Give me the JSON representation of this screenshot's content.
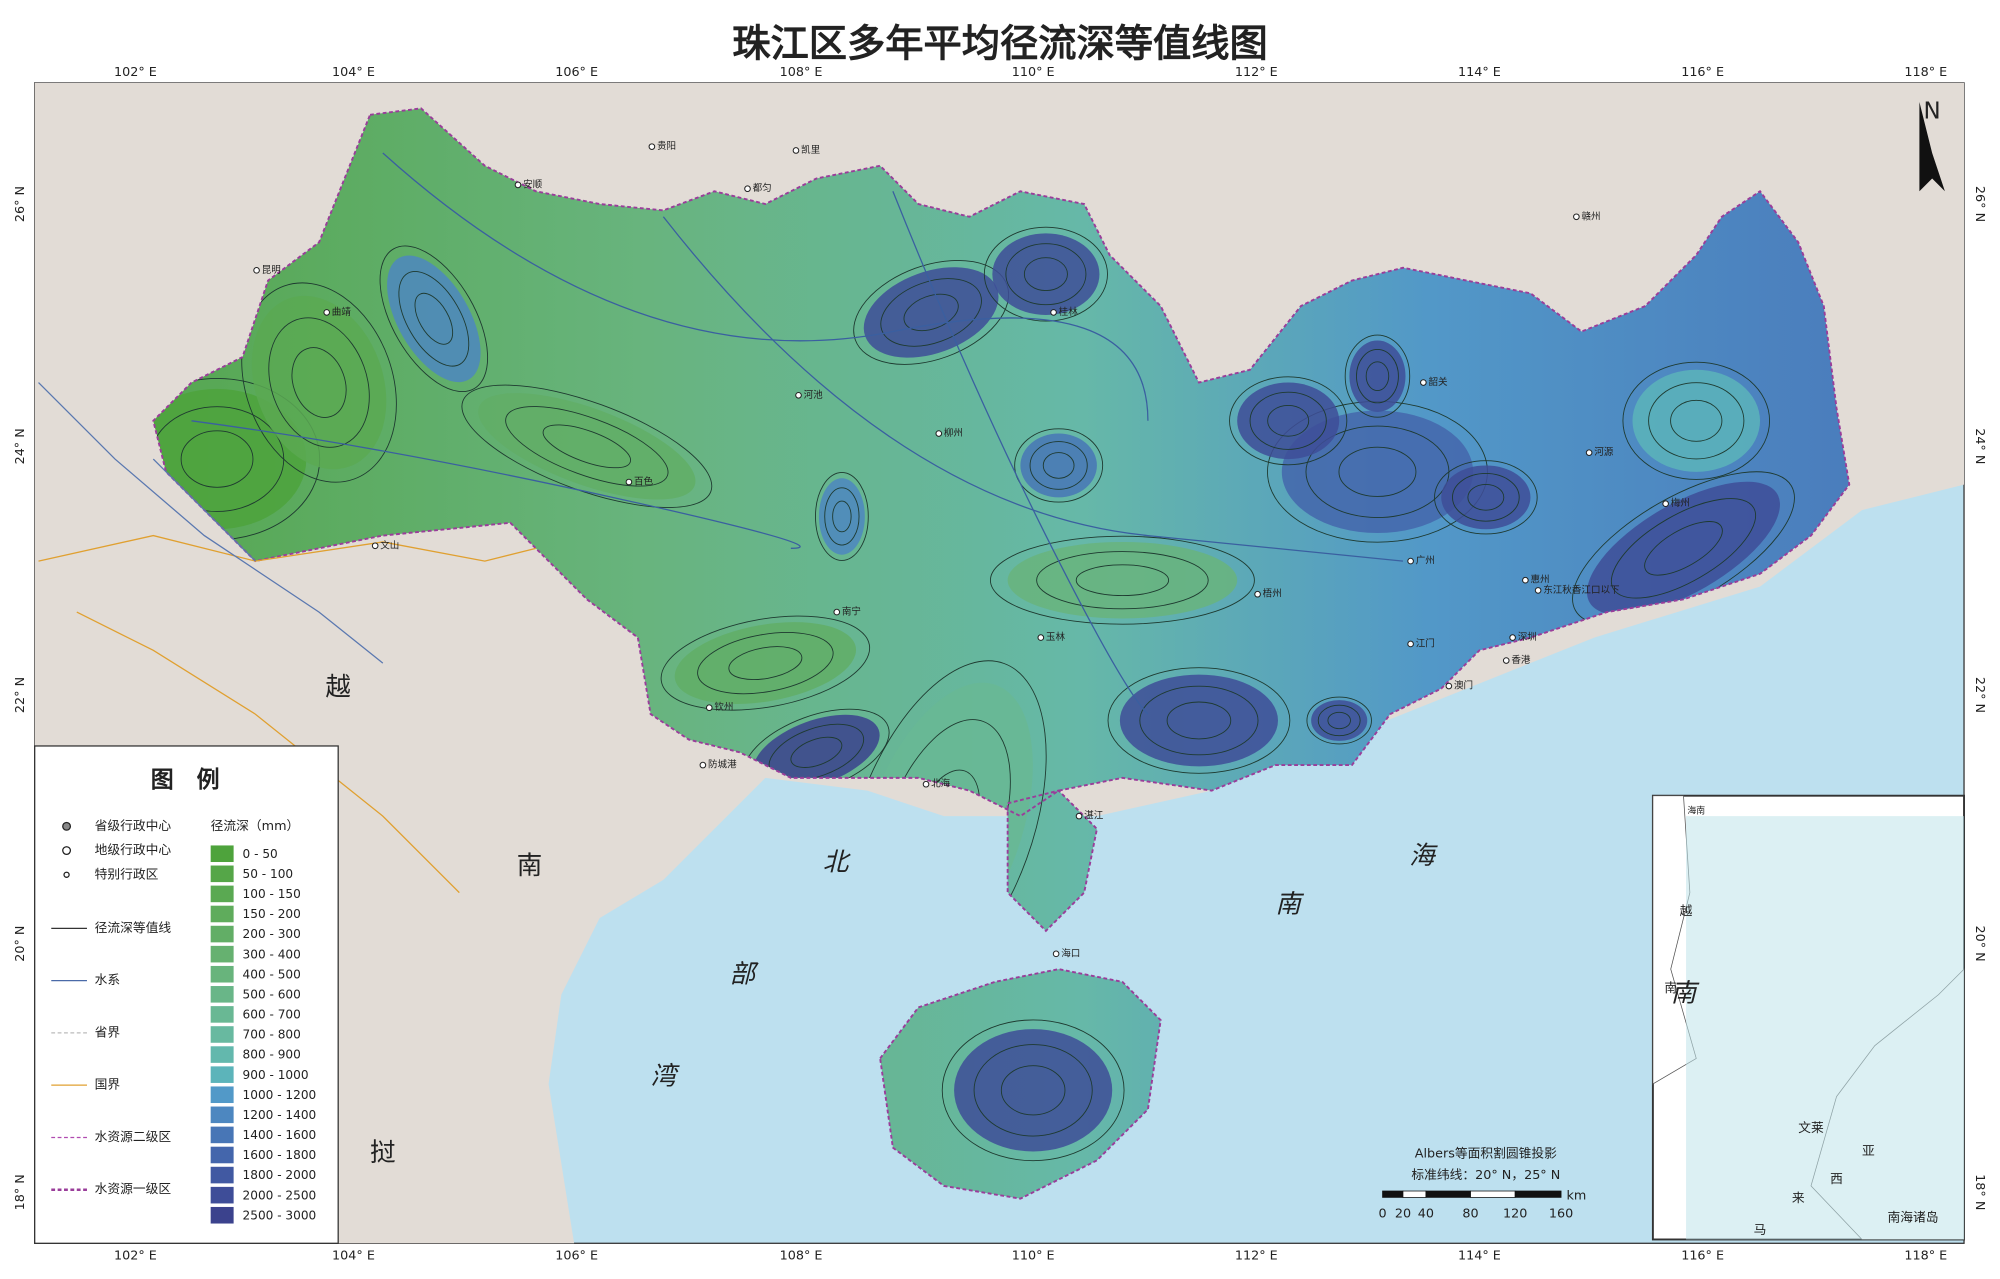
{
  "map": {
    "title": "珠江区多年平均径流深等值线图",
    "longitude_labels": [
      "102° E",
      "104° E",
      "106° E",
      "108° E",
      "110° E",
      "112° E",
      "114° E",
      "116° E",
      "118° E"
    ],
    "latitude_labels": [
      "26° N",
      "24° N",
      "22° N",
      "20° N",
      "18° N"
    ],
    "north": "N",
    "countries": [
      "越",
      "南",
      "挝"
    ],
    "seas": [
      "北",
      "部",
      "湾",
      "南",
      "海",
      "南"
    ],
    "places": [
      "昆明",
      "贵阳",
      "安顺",
      "都匀",
      "凯里",
      "河池",
      "百色",
      "南宁",
      "柳州",
      "桂林",
      "梧州",
      "玉林",
      "北海",
      "钦州",
      "湛江",
      "海口",
      "韶关",
      "广州",
      "深圳",
      "香港",
      "澳门",
      "江门",
      "惠州",
      "河源",
      "梅州",
      "赣州",
      "曲靖",
      "文山",
      "防城港",
      "东江秋香江口以下"
    ],
    "legend": {
      "title": "图　例",
      "symbols": [
        "省级行政中心",
        "地级行政中心",
        "特别行政区",
        "径流深等值线",
        "水系",
        "省界",
        "国界",
        "水资源二级区",
        "水资源一级区"
      ],
      "classes_title": "径流深（mm）",
      "classes": [
        {
          "label": "0 - 50",
          "color": "#4ea33c"
        },
        {
          "label": "50 - 100",
          "color": "#55a648"
        },
        {
          "label": "100 - 150",
          "color": "#5aa952"
        },
        {
          "label": "150 - 200",
          "color": "#5fac5c"
        },
        {
          "label": "200 - 300",
          "color": "#62ae66"
        },
        {
          "label": "300 - 400",
          "color": "#66b170"
        },
        {
          "label": "400 - 500",
          "color": "#68b47c"
        },
        {
          "label": "500 - 600",
          "color": "#69b688"
        },
        {
          "label": "600 - 700",
          "color": "#69b894"
        },
        {
          "label": "700 - 800",
          "color": "#68b9a0"
        },
        {
          "label": "800 - 900",
          "color": "#63b8ad"
        },
        {
          "label": "900 - 1000",
          "color": "#5cb4ba"
        },
        {
          "label": "1000 - 1200",
          "color": "#5299c8"
        },
        {
          "label": "1200 - 1400",
          "color": "#4d87c0"
        },
        {
          "label": "1400 - 1600",
          "color": "#4876b6"
        },
        {
          "label": "1600 - 1800",
          "color": "#4466ac"
        },
        {
          "label": "1800 - 2000",
          "color": "#4159a2"
        },
        {
          "label": "2000 - 2500",
          "color": "#3e4d98"
        },
        {
          "label": "2500 - 3000",
          "color": "#3b428d"
        }
      ]
    },
    "projection": [
      "Albers等面积割圆锥投影",
      "标准纬线：20° N，25° N"
    ],
    "scale_bar": {
      "ticks": [
        "0",
        "20",
        "40",
        "80",
        "120",
        "160"
      ],
      "unit": "km"
    },
    "inset": {
      "labels": [
        "海南",
        "越",
        "南",
        "文莱",
        "马",
        "来",
        "西",
        "亚",
        "南海诸岛"
      ]
    }
  }
}
